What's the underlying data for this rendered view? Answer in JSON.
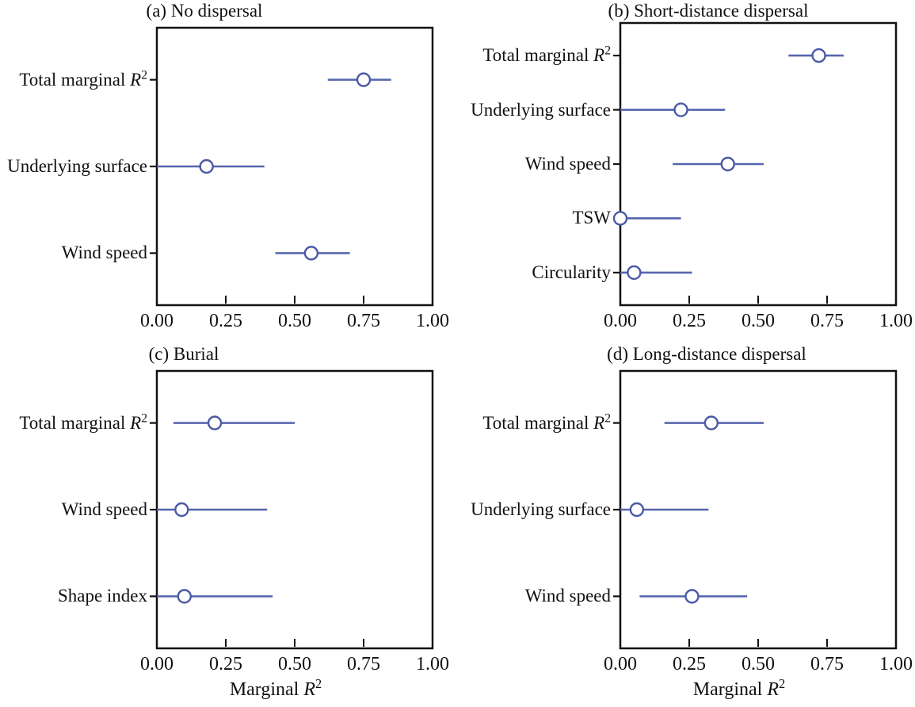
{
  "figure": {
    "colors": {
      "ci_line": "#5565ad",
      "marker_stroke": "#4a5aa6",
      "marker_fill": "#ffffff",
      "axis": "#111111",
      "background": "#ffffff"
    },
    "marker": "open-circle"
  },
  "chart_data": [
    {
      "type": "scatter",
      "title": "(a) No dispersal",
      "xlabel": "",
      "xlim": [
        0,
        1
      ],
      "x_ticks": [
        "0.00",
        "0.25",
        "0.50",
        "0.75",
        "1.00"
      ],
      "categories": [
        {
          "label": "Total marginal R^2",
          "value": 0.75,
          "ci": [
            0.62,
            0.85
          ]
        },
        {
          "label": "Underlying surface",
          "value": 0.18,
          "ci": [
            0.0,
            0.39
          ]
        },
        {
          "label": "Wind speed",
          "value": 0.56,
          "ci": [
            0.43,
            0.7
          ]
        }
      ]
    },
    {
      "type": "scatter",
      "title": "(b) Short-distance dispersal",
      "xlabel": "",
      "xlim": [
        0,
        1
      ],
      "x_ticks": [
        "0.00",
        "0.25",
        "0.50",
        "0.75",
        "1.00"
      ],
      "categories": [
        {
          "label": "Total marginal R^2",
          "value": 0.72,
          "ci": [
            0.61,
            0.81
          ]
        },
        {
          "label": "Underlying surface",
          "value": 0.22,
          "ci": [
            0.0,
            0.38
          ]
        },
        {
          "label": "Wind speed",
          "value": 0.39,
          "ci": [
            0.19,
            0.52
          ]
        },
        {
          "label": "TSW",
          "value": 0.0,
          "ci": [
            0.0,
            0.22
          ]
        },
        {
          "label": "Circularity",
          "value": 0.05,
          "ci": [
            0.0,
            0.26
          ]
        }
      ]
    },
    {
      "type": "scatter",
      "title": "(c) Burial",
      "xlabel": "Marginal R^2",
      "xlim": [
        0,
        1
      ],
      "x_ticks": [
        "0.00",
        "0.25",
        "0.50",
        "0.75",
        "1.00"
      ],
      "categories": [
        {
          "label": "Total marginal R^2",
          "value": 0.21,
          "ci": [
            0.06,
            0.5
          ]
        },
        {
          "label": "Wind speed",
          "value": 0.09,
          "ci": [
            0.0,
            0.4
          ]
        },
        {
          "label": "Shape index",
          "value": 0.1,
          "ci": [
            0.0,
            0.42
          ]
        }
      ]
    },
    {
      "type": "scatter",
      "title": "(d) Long-distance dispersal",
      "xlabel": "Marginal R^2",
      "xlim": [
        0,
        1
      ],
      "x_ticks": [
        "0.00",
        "0.25",
        "0.50",
        "0.75",
        "1.00"
      ],
      "categories": [
        {
          "label": "Total marginal R^2",
          "value": 0.33,
          "ci": [
            0.16,
            0.52
          ]
        },
        {
          "label": "Underlying surface",
          "value": 0.06,
          "ci": [
            0.0,
            0.32
          ]
        },
        {
          "label": "Wind speed",
          "value": 0.26,
          "ci": [
            0.07,
            0.46
          ]
        }
      ]
    }
  ]
}
